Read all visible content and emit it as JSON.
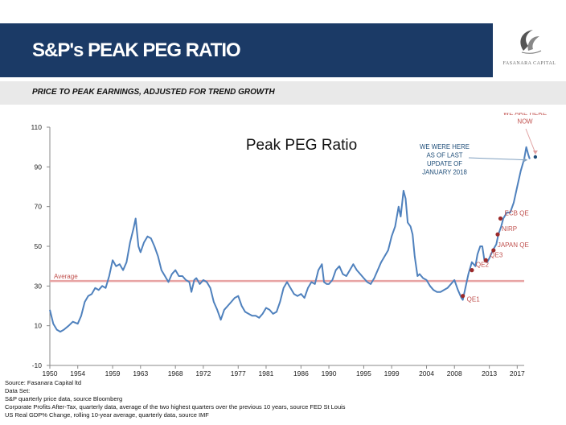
{
  "header": {
    "title": "S&P's PEAK PEG RATIO",
    "logo_text": "FASANARA CAPITAL"
  },
  "subheader": {
    "title": "PRICE TO PEAK EARNINGS, ADJUSTED FOR TREND GROWTH"
  },
  "footer": {
    "lines": [
      "Source: Fasanara Capital ltd",
      "Data Set:",
      "S&P quarterly price data, source Bloomberg",
      "Corporate Profits After-Tax, quarterly data, average of the two highest quarters over the previous 10 years, source FED St Louis",
      "US Real GDP% Change, rolling 10-year average, quarterly data, source IMF"
    ]
  },
  "colors": {
    "header_bg": "#1b3a66",
    "line": "#4f81bd",
    "average_line": "#e8a3a3",
    "event_marker": "#9c2a2a",
    "callout_text": "#c0504d",
    "callout_blue": "#1f4e79"
  },
  "chart_data": {
    "type": "line",
    "title": "Peak PEG Ratio",
    "xlabel": "",
    "ylabel": "",
    "xlim": [
      1950,
      2018
    ],
    "ylim": [
      -10,
      110
    ],
    "x_ticks": [
      1950,
      1954,
      1959,
      1963,
      1968,
      1972,
      1977,
      1981,
      1986,
      1990,
      1995,
      1999,
      2004,
      2008,
      2013,
      2017
    ],
    "y_ticks": [
      -10,
      10,
      30,
      50,
      70,
      90,
      110
    ],
    "grid": false,
    "average": {
      "label": "Average",
      "value": 32.5
    },
    "series": [
      {
        "values": [
          [
            1950.0,
            18
          ],
          [
            1950.5,
            11
          ],
          [
            1951.0,
            8
          ],
          [
            1951.5,
            7
          ],
          [
            1952.0,
            8
          ],
          [
            1952.7,
            10
          ],
          [
            1953.3,
            12
          ],
          [
            1954.0,
            11
          ],
          [
            1954.5,
            15
          ],
          [
            1955.0,
            22
          ],
          [
            1955.5,
            25
          ],
          [
            1956.0,
            26
          ],
          [
            1956.5,
            29
          ],
          [
            1957.0,
            28
          ],
          [
            1957.5,
            30
          ],
          [
            1958.0,
            29
          ],
          [
            1958.5,
            35
          ],
          [
            1959.0,
            43
          ],
          [
            1959.5,
            40
          ],
          [
            1960.0,
            41
          ],
          [
            1960.5,
            38
          ],
          [
            1961.0,
            42
          ],
          [
            1961.5,
            52
          ],
          [
            1962.0,
            59
          ],
          [
            1962.3,
            64
          ],
          [
            1962.7,
            50
          ],
          [
            1963.0,
            47
          ],
          [
            1963.5,
            52
          ],
          [
            1964.0,
            55
          ],
          [
            1964.5,
            54
          ],
          [
            1965.0,
            50
          ],
          [
            1965.5,
            45
          ],
          [
            1966.0,
            38
          ],
          [
            1966.5,
            35
          ],
          [
            1967.0,
            32
          ],
          [
            1967.5,
            36
          ],
          [
            1968.0,
            38
          ],
          [
            1968.5,
            35
          ],
          [
            1969.0,
            35
          ],
          [
            1969.5,
            33
          ],
          [
            1970.0,
            32
          ],
          [
            1970.3,
            27
          ],
          [
            1970.7,
            33
          ],
          [
            1971.0,
            34
          ],
          [
            1971.5,
            31
          ],
          [
            1972.0,
            33
          ],
          [
            1972.5,
            32
          ],
          [
            1973.0,
            29
          ],
          [
            1973.5,
            22
          ],
          [
            1974.0,
            18
          ],
          [
            1974.5,
            13
          ],
          [
            1975.0,
            18
          ],
          [
            1975.5,
            20
          ],
          [
            1976.0,
            22
          ],
          [
            1976.5,
            24
          ],
          [
            1977.0,
            25
          ],
          [
            1977.5,
            20
          ],
          [
            1978.0,
            17
          ],
          [
            1978.5,
            16
          ],
          [
            1979.0,
            15
          ],
          [
            1979.5,
            15
          ],
          [
            1980.0,
            14
          ],
          [
            1980.5,
            16
          ],
          [
            1981.0,
            19
          ],
          [
            1981.5,
            18
          ],
          [
            1982.0,
            16
          ],
          [
            1982.5,
            17
          ],
          [
            1983.0,
            22
          ],
          [
            1983.5,
            29
          ],
          [
            1984.0,
            32
          ],
          [
            1984.5,
            29
          ],
          [
            1985.0,
            26
          ],
          [
            1985.5,
            25
          ],
          [
            1986.0,
            26
          ],
          [
            1986.5,
            24
          ],
          [
            1987.0,
            29
          ],
          [
            1987.5,
            32
          ],
          [
            1988.0,
            31
          ],
          [
            1988.5,
            38
          ],
          [
            1989.0,
            41
          ],
          [
            1989.3,
            32
          ],
          [
            1989.7,
            31
          ],
          [
            1990.0,
            31
          ],
          [
            1990.5,
            33
          ],
          [
            1991.0,
            38
          ],
          [
            1991.5,
            40
          ],
          [
            1992.0,
            36
          ],
          [
            1992.5,
            35
          ],
          [
            1993.0,
            38
          ],
          [
            1993.5,
            41
          ],
          [
            1994.0,
            38
          ],
          [
            1994.5,
            36
          ],
          [
            1995.0,
            34
          ],
          [
            1995.5,
            32
          ],
          [
            1996.0,
            31
          ],
          [
            1996.5,
            34
          ],
          [
            1997.0,
            38
          ],
          [
            1997.5,
            42
          ],
          [
            1998.0,
            45
          ],
          [
            1998.5,
            48
          ],
          [
            1999.0,
            55
          ],
          [
            1999.5,
            60
          ],
          [
            2000.0,
            70
          ],
          [
            2000.3,
            65
          ],
          [
            2000.7,
            78
          ],
          [
            2001.0,
            74
          ],
          [
            2001.3,
            62
          ],
          [
            2001.7,
            60
          ],
          [
            2002.0,
            56
          ],
          [
            2002.3,
            45
          ],
          [
            2002.7,
            35
          ],
          [
            2003.0,
            36
          ],
          [
            2003.5,
            34
          ],
          [
            2004.0,
            33
          ],
          [
            2004.5,
            30
          ],
          [
            2005.0,
            28
          ],
          [
            2005.5,
            27
          ],
          [
            2006.0,
            27
          ],
          [
            2006.5,
            28
          ],
          [
            2007.0,
            29
          ],
          [
            2007.5,
            31
          ],
          [
            2008.0,
            33
          ],
          [
            2008.5,
            28
          ],
          [
            2009.0,
            24
          ],
          [
            2009.2,
            23
          ],
          [
            2009.5,
            28
          ],
          [
            2010.0,
            36
          ],
          [
            2010.5,
            42
          ],
          [
            2011.0,
            40
          ],
          [
            2011.3,
            46
          ],
          [
            2011.7,
            50
          ],
          [
            2012.0,
            50
          ],
          [
            2012.3,
            43
          ],
          [
            2012.7,
            42
          ],
          [
            2013.0,
            44
          ],
          [
            2013.5,
            48
          ],
          [
            2014.0,
            51
          ],
          [
            2014.3,
            56
          ],
          [
            2014.7,
            60
          ],
          [
            2015.0,
            64
          ],
          [
            2015.5,
            67
          ],
          [
            2016.0,
            67
          ],
          [
            2016.5,
            72
          ],
          [
            2017.0,
            80
          ],
          [
            2017.5,
            88
          ],
          [
            2018.0,
            94
          ],
          [
            2018.3,
            100
          ],
          [
            2018.6,
            96
          ],
          [
            2018.8,
            94
          ]
        ]
      }
    ],
    "events": [
      {
        "label": "QE1",
        "x": 2009.2,
        "y": 25
      },
      {
        "label": "QE2",
        "x": 2010.5,
        "y": 38
      },
      {
        "label": "QE3",
        "x": 2012.5,
        "y": 43
      },
      {
        "label": "JAPAN QE",
        "x": 2013.6,
        "y": 48
      },
      {
        "label": "NIRP",
        "x": 2014.2,
        "y": 56
      },
      {
        "label": "ECB QE",
        "x": 2014.6,
        "y": 64
      }
    ],
    "callouts": [
      {
        "lines": [
          "WE WERE HERE",
          "AS OF LAST",
          "UPDATE OF",
          "JANUARY 2018"
        ],
        "x": 2018.8,
        "y": 93.5
      },
      {
        "lines": [
          "WE ARE HERE",
          "NOW"
        ],
        "x": 2019.6,
        "y": 95
      }
    ]
  }
}
